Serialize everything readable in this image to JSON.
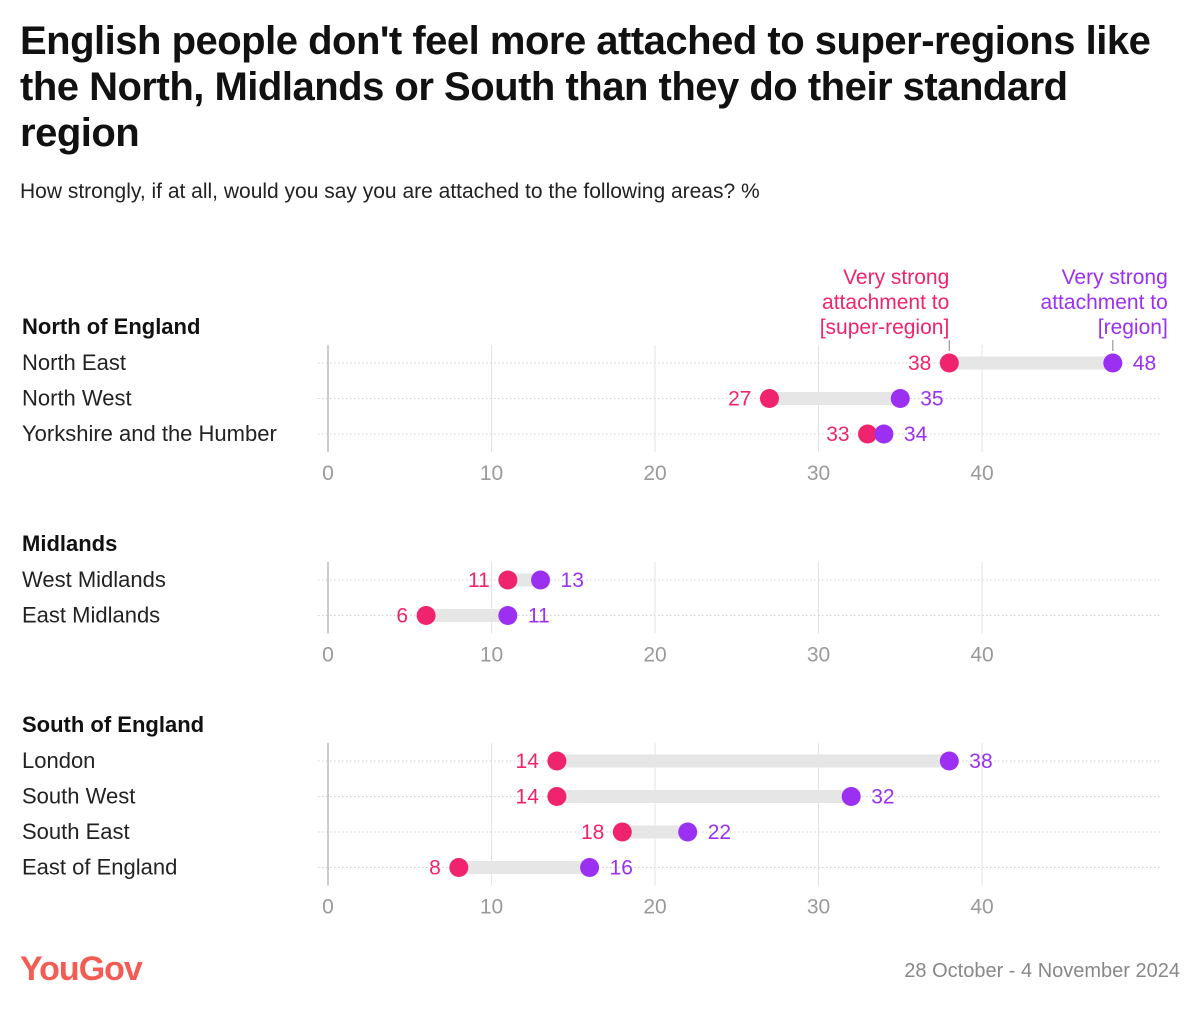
{
  "title": "English people don't feel more attached to super-regions like the North, Midlands or South than they do their standard region",
  "subtitle": "How strongly, if at all, would you say you are attached to the following areas? %",
  "legend": {
    "super_region": {
      "lines": [
        "Very strong",
        "attachment to",
        "[super-region]"
      ],
      "color": "#f0246e"
    },
    "region": {
      "lines": [
        "Very strong",
        "attachment to",
        "[region]"
      ],
      "color": "#9b30f2"
    }
  },
  "footer": {
    "brand": "YouGov",
    "date": "28 October - 4 November 2024"
  },
  "chart_data": {
    "type": "dumbbell",
    "xlim": [
      0,
      50
    ],
    "ticks": [
      0,
      10,
      20,
      30,
      40
    ],
    "series": [
      {
        "name": "Very strong attachment to [super-region]",
        "color": "#f0246e"
      },
      {
        "name": "Very strong attachment to [region]",
        "color": "#9b30f2"
      }
    ],
    "groups": [
      {
        "name": "North of England",
        "rows": [
          {
            "label": "North East",
            "super_region": 38,
            "region": 48
          },
          {
            "label": "North West",
            "super_region": 27,
            "region": 35
          },
          {
            "label": "Yorkshire and the Humber",
            "super_region": 33,
            "region": 34
          }
        ]
      },
      {
        "name": "Midlands",
        "rows": [
          {
            "label": "West Midlands",
            "super_region": 11,
            "region": 13
          },
          {
            "label": "East Midlands",
            "super_region": 6,
            "region": 11
          }
        ]
      },
      {
        "name": "South of England",
        "rows": [
          {
            "label": "London",
            "super_region": 14,
            "region": 38
          },
          {
            "label": "South West",
            "super_region": 14,
            "region": 32
          },
          {
            "label": "South East",
            "super_region": 18,
            "region": 22
          },
          {
            "label": "East of England",
            "super_region": 8,
            "region": 16
          }
        ]
      }
    ]
  }
}
